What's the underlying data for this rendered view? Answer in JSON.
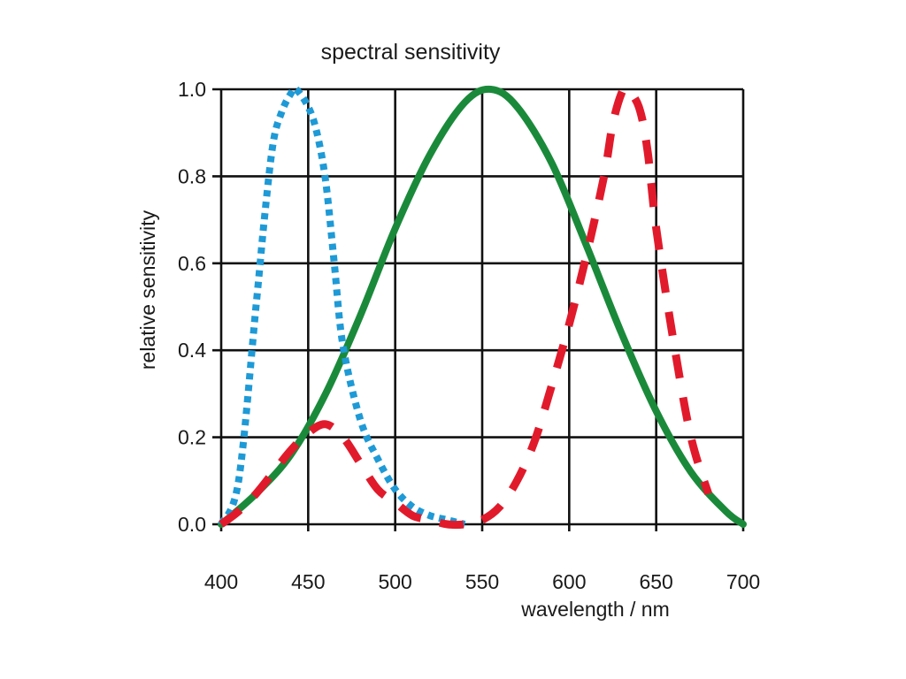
{
  "chart_data": {
    "type": "line",
    "title": "spectral sensitivity",
    "xlabel": "wavelength / nm",
    "ylabel": "relative sensitivity",
    "xlim": [
      400,
      700
    ],
    "ylim": [
      0,
      1
    ],
    "xticks": [
      400,
      450,
      500,
      550,
      600,
      650,
      700
    ],
    "yticks": [
      "0.0",
      "0.2",
      "0.4",
      "0.6",
      "0.8",
      "1.0"
    ],
    "grid": true,
    "series": [
      {
        "style": "dotted",
        "color": "#1e9ad6",
        "x": [
          400,
          410,
          420,
          425,
          430,
          435,
          440,
          443,
          450,
          455,
          460,
          465,
          470,
          480,
          490,
          500,
          510,
          520,
          530,
          540
        ],
        "y": [
          0.0,
          0.1,
          0.5,
          0.71,
          0.88,
          0.95,
          0.99,
          1.0,
          0.96,
          0.9,
          0.79,
          0.6,
          0.41,
          0.24,
          0.15,
          0.08,
          0.04,
          0.02,
          0.01,
          0.0
        ]
      },
      {
        "style": "solid",
        "color": "#1a8a3a",
        "x": [
          400,
          420,
          440,
          460,
          480,
          500,
          520,
          540,
          555,
          570,
          590,
          610,
          630,
          650,
          670,
          690,
          700
        ],
        "y": [
          0.0,
          0.07,
          0.16,
          0.3,
          0.48,
          0.68,
          0.85,
          0.97,
          1.0,
          0.96,
          0.83,
          0.64,
          0.44,
          0.26,
          0.12,
          0.03,
          0.0
        ]
      },
      {
        "style": "dashed",
        "color": "#e11a2b",
        "x": [
          400,
          410,
          420,
          430,
          440,
          450,
          460,
          470,
          480,
          490,
          500,
          510,
          520,
          530,
          540,
          550,
          560,
          570,
          580,
          590,
          600,
          610,
          620,
          625,
          630,
          633,
          640,
          645,
          650,
          660,
          670,
          680
        ],
        "y": [
          0.0,
          0.03,
          0.07,
          0.12,
          0.17,
          0.21,
          0.23,
          0.2,
          0.14,
          0.08,
          0.05,
          0.02,
          0.01,
          0.0,
          0.0,
          0.01,
          0.04,
          0.1,
          0.19,
          0.32,
          0.46,
          0.62,
          0.8,
          0.92,
          0.99,
          1.0,
          0.96,
          0.86,
          0.68,
          0.42,
          0.2,
          0.07
        ]
      }
    ]
  }
}
